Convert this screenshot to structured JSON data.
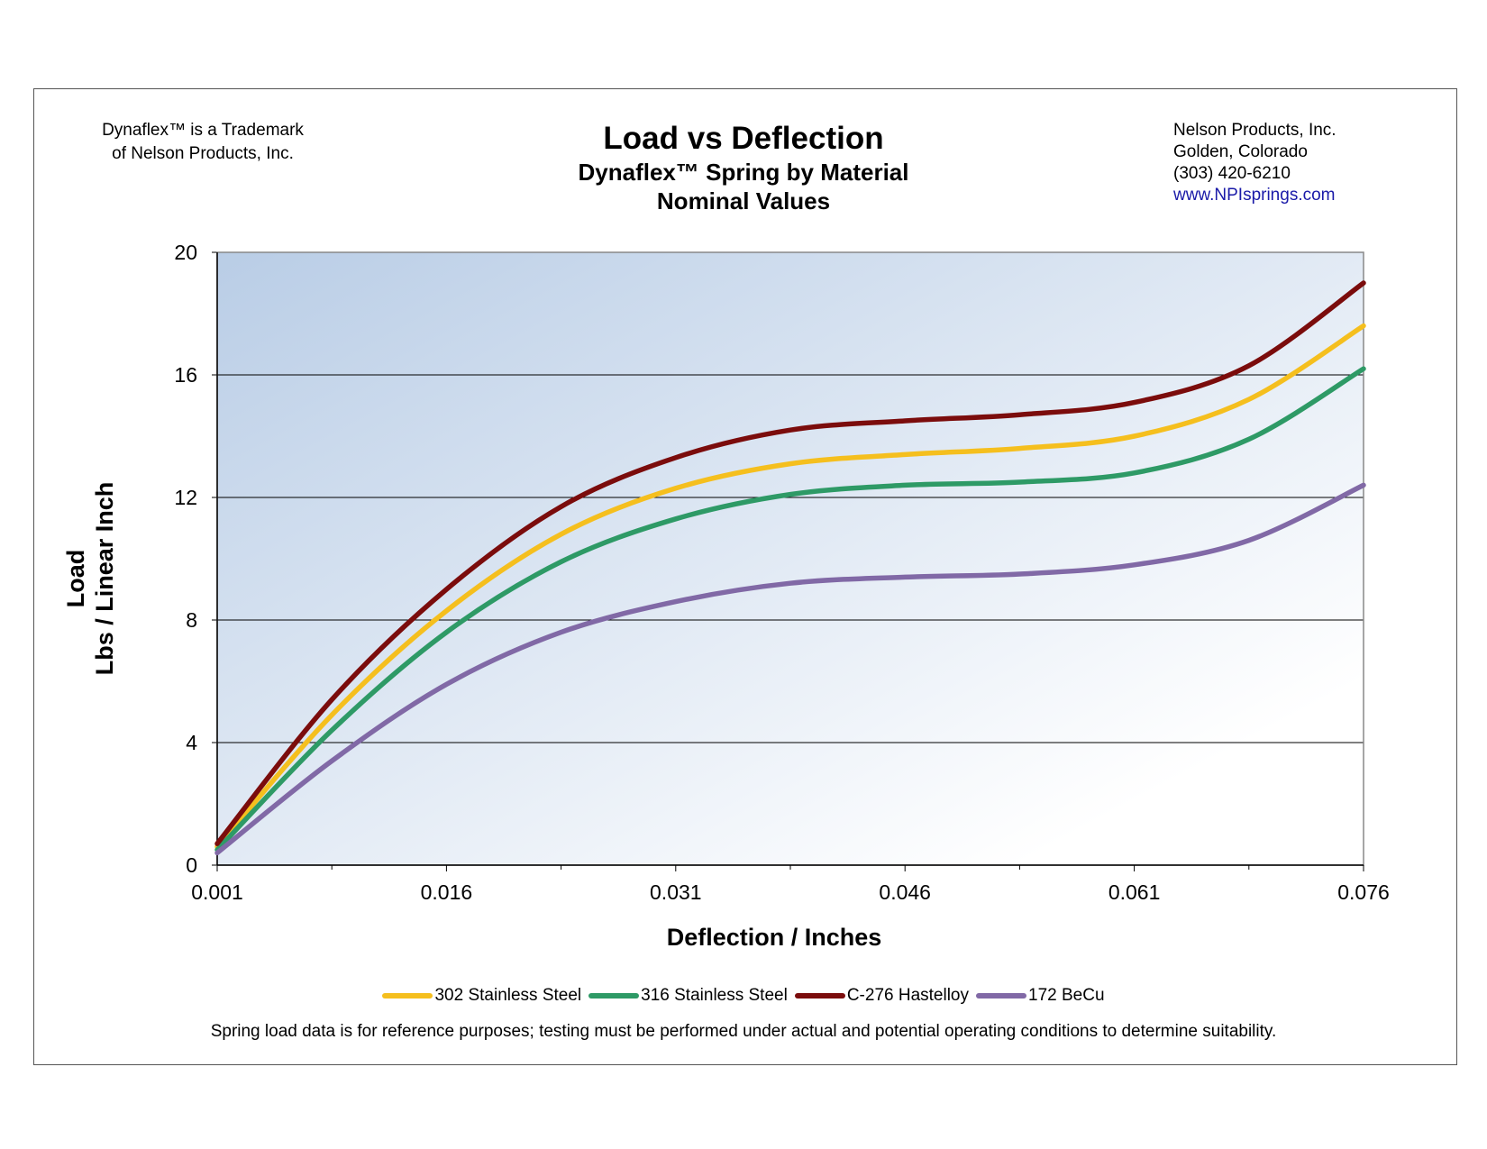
{
  "header": {
    "trademark_line1": "Dynaflex™ is a Trademark",
    "trademark_line2": "of Nelson Products, Inc.",
    "company_name": "Nelson Products, Inc.",
    "company_location": "Golden, Colorado",
    "company_phone": "(303) 420-6210",
    "company_web": "www.NPIsprings.com"
  },
  "footer": {
    "disclaimer": "Spring load data is for reference purposes; testing must be performed under actual and potential operating conditions to determine suitability."
  },
  "colors": {
    "plot_gradient_start": "#b9cde6",
    "plot_gradient_end": "#ffffff",
    "link": "#1a1aa8"
  },
  "chart_data": {
    "type": "line",
    "title": "Load vs Deflection",
    "subtitle_line1": "Dynaflex™ Spring by Material",
    "subtitle_line2": "Nominal Values",
    "xlabel": "Deflection / Inches",
    "ylabel_line1": "Load",
    "ylabel_line2": "Lbs / Linear Inch",
    "xlim": [
      0.001,
      0.076
    ],
    "ylim": [
      0,
      20
    ],
    "x_ticks": [
      "0.001",
      "0.016",
      "0.031",
      "0.046",
      "0.061",
      "0.076"
    ],
    "y_ticks": [
      "0",
      "4",
      "8",
      "12",
      "16",
      "20"
    ],
    "grid": "horizontal",
    "legend_position": "bottom",
    "x": [
      0.001,
      0.0085,
      0.016,
      0.0235,
      0.031,
      0.0385,
      0.046,
      0.0535,
      0.061,
      0.0685,
      0.076
    ],
    "series": [
      {
        "name": "302 Stainless Steel",
        "color": "#f5bf1e",
        "values": [
          0.6,
          4.9,
          8.3,
          10.8,
          12.3,
          13.1,
          13.4,
          13.6,
          14.0,
          15.2,
          17.6
        ]
      },
      {
        "name": "316 Stainless Steel",
        "color": "#2e9a66",
        "values": [
          0.5,
          4.4,
          7.6,
          9.9,
          11.3,
          12.1,
          12.4,
          12.5,
          12.8,
          13.9,
          16.2
        ]
      },
      {
        "name": "C-276 Hastelloy",
        "color": "#7b0c0c",
        "values": [
          0.7,
          5.4,
          9.0,
          11.7,
          13.3,
          14.2,
          14.5,
          14.7,
          15.1,
          16.3,
          19.0
        ]
      },
      {
        "name": "172 BeCu",
        "color": "#8169a6",
        "values": [
          0.4,
          3.4,
          5.9,
          7.6,
          8.6,
          9.2,
          9.4,
          9.5,
          9.8,
          10.6,
          12.4
        ]
      }
    ]
  }
}
